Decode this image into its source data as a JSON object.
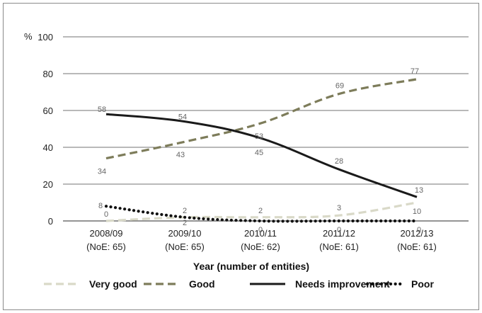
{
  "chart_data": {
    "type": "line",
    "y_unit": "%",
    "xlabel": "Year (number of entities)",
    "ylim": [
      0,
      100
    ],
    "yticks": [
      "0",
      "20",
      "40",
      "60",
      "80",
      "100"
    ],
    "categories": [
      "2008/09",
      "2009/10",
      "2010/11",
      "2011/12",
      "2012/13"
    ],
    "category_sublabels": [
      "(NoE: 65)",
      "(NoE: 65)",
      "(NoE: 62)",
      "(NoE: 61)",
      "(NoE: 61)"
    ],
    "series": [
      {
        "name": "Very good",
        "values": [
          0,
          2,
          2,
          3,
          10
        ],
        "color": "#d9d9c8",
        "style": "dashed"
      },
      {
        "name": "Good",
        "values": [
          34,
          43,
          53,
          69,
          77
        ],
        "color": "#7d7c5a",
        "style": "dashed"
      },
      {
        "name": "Needs improvement",
        "values": [
          58,
          54,
          45,
          28,
          13
        ],
        "color": "#1a1a1a",
        "style": "solid"
      },
      {
        "name": "Poor",
        "values": [
          8,
          2,
          0,
          0,
          0
        ],
        "color": "#111111",
        "style": "dotted"
      }
    ],
    "grid": true,
    "legend_position": "bottom"
  }
}
